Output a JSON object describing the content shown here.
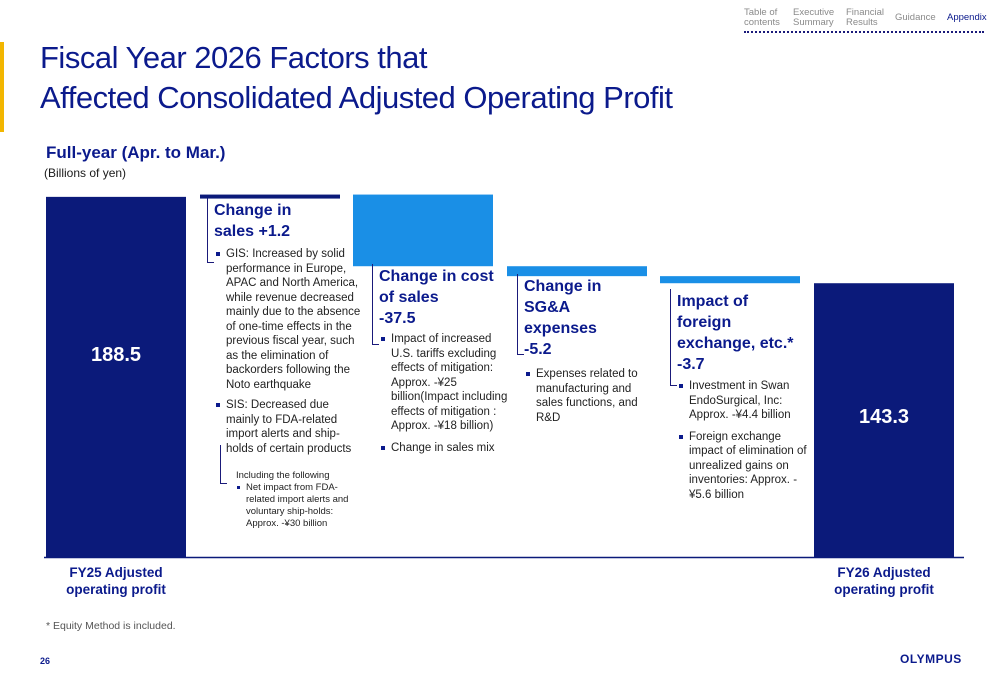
{
  "nav": {
    "items": [
      {
        "label": "Table of contents",
        "line1": "Table of",
        "line2": "contents",
        "active": false
      },
      {
        "label": "Executive Summary",
        "line1": "Executive",
        "line2": "Summary",
        "active": false
      },
      {
        "label": "Financial Results",
        "line1": "Financial",
        "line2": "Results",
        "active": false
      },
      {
        "label": "Guidance",
        "line1": "Guidance",
        "line2": "",
        "active": false
      },
      {
        "label": "Appendix",
        "line1": "Appendix",
        "line2": "",
        "active": true
      }
    ]
  },
  "title": {
    "line1": "Fiscal Year 2026 Factors that",
    "line2": "Affected Consolidated Adjusted Operating Profit"
  },
  "subtitle": "Full-year (Apr. to Mar.)",
  "units": "(Billions of yen)",
  "chart_data": {
    "type": "bar",
    "categories": [
      "FY25 Adjusted operating profit",
      "Change in sales",
      "Change in cost of sales",
      "Change in SG&A expenses",
      "Impact of foreign exchange, etc.*",
      "FY26 Adjusted operating profit"
    ],
    "values": [
      188.5,
      1.2,
      -37.5,
      -5.2,
      -3.7,
      143.3
    ],
    "start_label": "188.5",
    "end_label": "143.3",
    "x_labels": [
      {
        "line1": "FY25 Adjusted",
        "line2": "operating profit"
      },
      {
        "line1": "FY26 Adjusted",
        "line2": "operating profit"
      }
    ],
    "colors": {
      "total": "#0b1a7a",
      "delta": "#1a8fe6",
      "delta_top": "#0b1a7a",
      "axis": "#0b1a7a"
    }
  },
  "boxes": {
    "sales": {
      "head1": "Change in",
      "head2": "sales +1.2",
      "bullets": [
        "GIS: Increased by solid performance in Europe, APAC and North America, while revenue decreased mainly due to the absence of one-time effects in the previous fiscal year, such as the elimination of backorders following the Noto earthquake",
        "SIS: Decreased due mainly to FDA-related import alerts and ship-holds of certain products"
      ],
      "sub_intro": "Including the following",
      "sub_bullet": "Net impact from FDA-related import alerts and voluntary ship-holds: Approx. -¥30 billion"
    },
    "cost": {
      "head1": "Change in cost",
      "head2": "of sales",
      "head3": "-37.5",
      "bullets": [
        "Impact of increased U.S. tariffs excluding effects of mitigation: Approx. -¥25 billion(Impact including effects of mitigation : Approx. -¥18 billion)",
        "Change in sales mix"
      ]
    },
    "sga": {
      "head1": "Change in",
      "head2": "SG&A expenses",
      "head3": "-5.2",
      "bullets": [
        "Expenses related to manufacturing and sales functions, and R&D"
      ]
    },
    "fx": {
      "head1": "Impact of",
      "head2": "foreign",
      "head3": "exchange, etc.*",
      "head4": "-3.7",
      "bullets": [
        "Investment in Swan EndoSurgical, Inc: Approx. -¥4.4 billion",
        "Foreign exchange impact of elimination of unrealized gains on inventories: Approx. -¥5.6 billion"
      ]
    }
  },
  "footnote": "* Equity Method is included.",
  "page_number": "26",
  "logo": "OLYMPUS"
}
